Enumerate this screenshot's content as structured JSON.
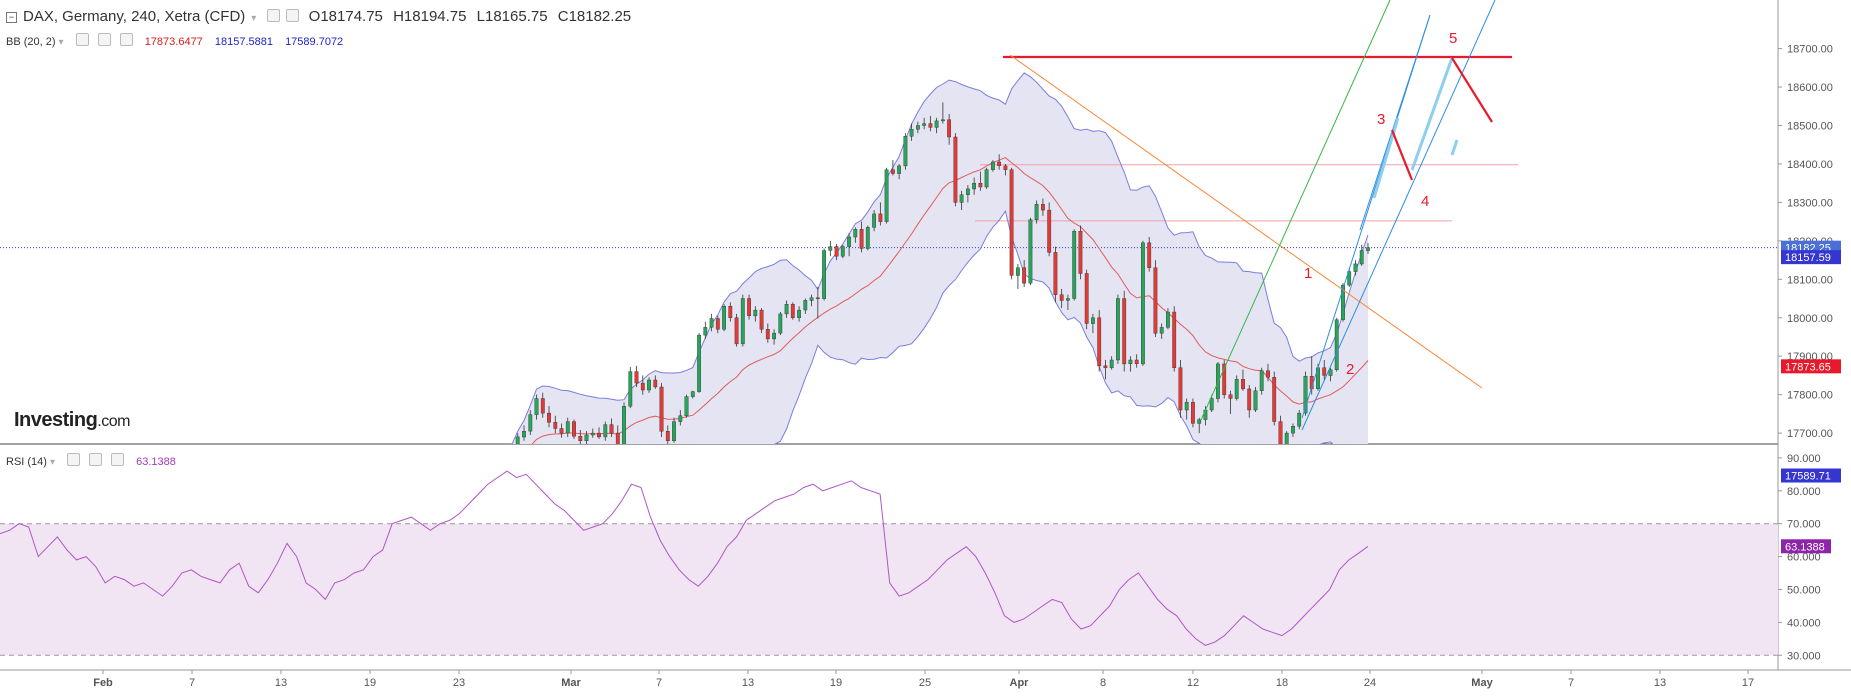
{
  "header": {
    "instrument": "DAX, Germany, 240, Xetra (CFD)",
    "open": "O18174.75",
    "high": "H18194.75",
    "low": "L18165.75",
    "close": "C18182.25"
  },
  "bb_indicator": {
    "label": "BB (20, 2)",
    "upper": "17873.6477",
    "middle": "18157.5881",
    "lower": "17589.7072"
  },
  "rsi_indicator": {
    "label": "RSI (14)",
    "value": "63.1388"
  },
  "logo": {
    "name": "Investing",
    "tld": ".com"
  },
  "colors": {
    "up": "#26a65b",
    "down": "#e53935",
    "bb_band": "#7a7ee0",
    "bb_mid": "#e05c5c",
    "bb_fill": "#e4e4f2",
    "rsi_line": "#b056c8",
    "rsi_fill": "#f1e5f4",
    "annotation_red": "#e8192c",
    "trend_orange": "#f7893b",
    "channel_blue": "#2d8fe0",
    "channel_green": "#38b449",
    "price_line": "#3b3bd6"
  },
  "chart_data": [
    {
      "type": "candlestick",
      "title": "DAX, Germany, 240, Xetra (CFD)",
      "y_ticks": [
        17700,
        17800,
        17900,
        18000,
        18100,
        18200,
        18300,
        18400,
        18500,
        18600,
        18700
      ],
      "y_tick_labels": [
        "17700.00",
        "17800.00",
        "17900.00",
        "18000.00",
        "18100.00",
        "18200.00",
        "18300.00",
        "18400.00",
        "18500.00",
        "18600.00",
        "18700.00"
      ],
      "ylim": [
        17570,
        18720
      ],
      "x_ticks": [
        "Feb",
        "7",
        "13",
        "19",
        "23",
        "Mar",
        "7",
        "13",
        "19",
        "25",
        "Apr",
        "8",
        "12",
        "18",
        "24",
        "May",
        "7",
        "13",
        "17"
      ],
      "price_labels": [
        {
          "value": 18182.25,
          "text": "18182.25",
          "color": "#4a6fd6"
        },
        {
          "value": 18157.59,
          "text": "18157.59",
          "color": "#3535d0"
        },
        {
          "value": 17873.65,
          "text": "17873.65",
          "color": "#e8192c"
        },
        {
          "value": 17589.71,
          "text": "17589.71",
          "color": "#3535d0"
        }
      ],
      "annotations": [
        "1",
        "2",
        "3",
        "4",
        "5"
      ],
      "current_price": 18182.25,
      "series": [
        {
          "name": "BB (20, 2)",
          "bands": [
            "upper",
            "middle",
            "lower"
          ]
        }
      ],
      "candles": [
        [
          17590,
          17605,
          17575,
          17598
        ],
        [
          17598,
          17625,
          17590,
          17615
        ],
        [
          17615,
          17655,
          17605,
          17640
        ],
        [
          17640,
          17700,
          17630,
          17690
        ],
        [
          17690,
          17720,
          17680,
          17705
        ],
        [
          17705,
          17760,
          17695,
          17748
        ],
        [
          17748,
          17800,
          17735,
          17790
        ],
        [
          17790,
          17805,
          17740,
          17752
        ],
        [
          17752,
          17770,
          17715,
          17728
        ],
        [
          17728,
          17745,
          17700,
          17712
        ],
        [
          17712,
          17725,
          17688,
          17700
        ],
        [
          17700,
          17740,
          17690,
          17730
        ],
        [
          17730,
          17735,
          17685,
          17692
        ],
        [
          17692,
          17708,
          17670,
          17680
        ],
        [
          17680,
          17705,
          17668,
          17695
        ],
        [
          17695,
          17712,
          17688,
          17700
        ],
        [
          17700,
          17715,
          17685,
          17690
        ],
        [
          17690,
          17730,
          17680,
          17722
        ],
        [
          17722,
          17738,
          17690,
          17700
        ],
        [
          17700,
          17720,
          17650,
          17660
        ],
        [
          17660,
          17780,
          17655,
          17770
        ],
        [
          17770,
          17872,
          17765,
          17860
        ],
        [
          17860,
          17875,
          17820,
          17830
        ],
        [
          17830,
          17850,
          17800,
          17812
        ],
        [
          17812,
          17845,
          17805,
          17838
        ],
        [
          17838,
          17850,
          17815,
          17820
        ],
        [
          17820,
          17830,
          17690,
          17705
        ],
        [
          17705,
          17720,
          17665,
          17680
        ],
        [
          17680,
          17740,
          17675,
          17730
        ],
        [
          17730,
          17760,
          17720,
          17745
        ],
        [
          17745,
          17800,
          17740,
          17795
        ],
        [
          17795,
          17810,
          17790,
          17808
        ],
        [
          17808,
          17960,
          17805,
          17955
        ],
        [
          17955,
          17990,
          17945,
          17975
        ],
        [
          17975,
          18010,
          17965,
          17998
        ],
        [
          17998,
          18005,
          17960,
          17970
        ],
        [
          17970,
          18035,
          17965,
          18030
        ],
        [
          18030,
          18040,
          17990,
          18000
        ],
        [
          18000,
          18010,
          17925,
          17932
        ],
        [
          17932,
          18060,
          17925,
          18050
        ],
        [
          18050,
          18060,
          17995,
          18005
        ],
        [
          18005,
          18030,
          17990,
          18020
        ],
        [
          18020,
          18025,
          17960,
          17970
        ],
        [
          17970,
          17985,
          17935,
          17945
        ],
        [
          17945,
          17970,
          17930,
          17960
        ],
        [
          17960,
          18015,
          17955,
          18010
        ],
        [
          18010,
          18045,
          18000,
          18035
        ],
        [
          18035,
          18040,
          17995,
          18000
        ],
        [
          18000,
          18030,
          17990,
          18020
        ],
        [
          18020,
          18050,
          18010,
          18045
        ],
        [
          18045,
          18060,
          18030,
          18052
        ],
        [
          18052,
          18080,
          17998,
          18050
        ],
        [
          18050,
          18180,
          18045,
          18175
        ],
        [
          18175,
          18200,
          18160,
          18185
        ],
        [
          18185,
          18192,
          18150,
          18160
        ],
        [
          18160,
          18190,
          18155,
          18185
        ],
        [
          18185,
          18220,
          18160,
          18210
        ],
        [
          18210,
          18235,
          18195,
          18230
        ],
        [
          18230,
          18250,
          18170,
          18180
        ],
        [
          18180,
          18240,
          18175,
          18235
        ],
        [
          18235,
          18280,
          18225,
          18270
        ],
        [
          18270,
          18300,
          18240,
          18250
        ],
        [
          18250,
          18390,
          18245,
          18385
        ],
        [
          18385,
          18410,
          18370,
          18375
        ],
        [
          18375,
          18400,
          18360,
          18395
        ],
        [
          18395,
          18480,
          18385,
          18472
        ],
        [
          18472,
          18505,
          18460,
          18490
        ],
        [
          18490,
          18510,
          18480,
          18500
        ],
        [
          18500,
          18520,
          18490,
          18505
        ],
        [
          18505,
          18525,
          18485,
          18495
        ],
        [
          18495,
          18520,
          18480,
          18512
        ],
        [
          18512,
          18560,
          18505,
          18515
        ],
        [
          18515,
          18530,
          18450,
          18470
        ],
        [
          18470,
          18480,
          18290,
          18300
        ],
        [
          18300,
          18330,
          18280,
          18320
        ],
        [
          18320,
          18345,
          18300,
          18335
        ],
        [
          18335,
          18365,
          18320,
          18350
        ],
        [
          18350,
          18380,
          18330,
          18340
        ],
        [
          18340,
          18390,
          18335,
          18385
        ],
        [
          18385,
          18410,
          18380,
          18405
        ],
        [
          18405,
          18425,
          18385,
          18395
        ],
        [
          18395,
          18400,
          18370,
          18385
        ],
        [
          18385,
          18390,
          18100,
          18110
        ],
        [
          18110,
          18140,
          18075,
          18130
        ],
        [
          18130,
          18150,
          18080,
          18090
        ],
        [
          18090,
          18260,
          18085,
          18255
        ],
        [
          18255,
          18305,
          18245,
          18295
        ],
        [
          18295,
          18310,
          18265,
          18280
        ],
        [
          18280,
          18300,
          18160,
          18170
        ],
        [
          18170,
          18185,
          18040,
          18060
        ],
        [
          18060,
          18075,
          18025,
          18045
        ],
        [
          18045,
          18060,
          18020,
          18050
        ],
        [
          18050,
          18230,
          18045,
          18225
        ],
        [
          18225,
          18240,
          18100,
          18115
        ],
        [
          18115,
          18125,
          17970,
          17985
        ],
        [
          17985,
          18010,
          17960,
          18000
        ],
        [
          18000,
          18020,
          17860,
          17875
        ],
        [
          17875,
          17890,
          17840,
          17870
        ],
        [
          17870,
          17900,
          17865,
          17890
        ],
        [
          17890,
          18060,
          17880,
          18050
        ],
        [
          18050,
          18070,
          17860,
          17880
        ],
        [
          17880,
          17900,
          17860,
          17890
        ],
        [
          17890,
          17905,
          17870,
          17880
        ],
        [
          17880,
          18200,
          17875,
          18195
        ],
        [
          18195,
          18210,
          18120,
          18130
        ],
        [
          18130,
          18150,
          17950,
          17960
        ],
        [
          17960,
          17985,
          17945,
          17975
        ],
        [
          17975,
          18025,
          17970,
          18015
        ],
        [
          18015,
          18030,
          17860,
          17870
        ],
        [
          17870,
          17890,
          17740,
          17760
        ],
        [
          17760,
          17790,
          17735,
          17780
        ],
        [
          17780,
          17790,
          17715,
          17725
        ],
        [
          17725,
          17740,
          17700,
          17735
        ],
        [
          17735,
          17770,
          17720,
          17760
        ],
        [
          17760,
          17800,
          17755,
          17790
        ],
        [
          17790,
          17885,
          17780,
          17880
        ],
        [
          17880,
          17890,
          17790,
          17800
        ],
        [
          17800,
          17810,
          17750,
          17790
        ],
        [
          17790,
          17850,
          17785,
          17840
        ],
        [
          17840,
          17865,
          17810,
          17815
        ],
        [
          17815,
          17825,
          17740,
          17760
        ],
        [
          17760,
          17820,
          17755,
          17810
        ],
        [
          17810,
          17870,
          17800,
          17862
        ],
        [
          17862,
          17880,
          17835,
          17845
        ],
        [
          17845,
          17860,
          17720,
          17730
        ],
        [
          17730,
          17745,
          17640,
          17655
        ],
        [
          17655,
          17705,
          17650,
          17700
        ],
        [
          17700,
          17725,
          17690,
          17718
        ],
        [
          17718,
          17760,
          17710,
          17752
        ],
        [
          17752,
          17860,
          17745,
          17848
        ],
        [
          17848,
          17900,
          17800,
          17815
        ],
        [
          17815,
          17880,
          17810,
          17870
        ],
        [
          17870,
          17890,
          17835,
          17850
        ],
        [
          17850,
          17870,
          17835,
          17865
        ],
        [
          17865,
          18000,
          17860,
          17995
        ],
        [
          17995,
          18090,
          17990,
          18085
        ],
        [
          18085,
          18130,
          18080,
          18120
        ],
        [
          18120,
          18150,
          18110,
          18140
        ],
        [
          18140,
          18190,
          18135,
          18175
        ],
        [
          18174.75,
          18194.75,
          18165.75,
          18182.25
        ]
      ]
    },
    {
      "type": "line",
      "title": "RSI (14)",
      "y_ticks": [
        30,
        40,
        50,
        60,
        70,
        80,
        90
      ],
      "y_tick_labels": [
        "30.000",
        "40.000",
        "50.000",
        "60.000",
        "70.000",
        "80.000",
        "90.000"
      ],
      "ylim": [
        27,
        92
      ],
      "levels": [
        70,
        30
      ],
      "current_value": 63.1388,
      "value_label": "63.1388",
      "values": [
        67,
        68,
        70,
        69,
        60,
        63,
        66,
        62,
        59,
        60,
        57,
        52,
        54,
        53,
        51,
        52,
        50,
        48,
        51,
        55,
        56,
        54,
        53,
        52,
        56,
        58,
        51,
        49,
        53,
        58,
        64,
        60,
        52,
        50,
        47,
        52,
        53,
        55,
        56,
        60,
        62,
        70,
        71,
        72,
        70,
        68,
        70,
        71,
        73,
        76,
        79,
        82,
        84,
        86,
        84,
        85,
        82,
        79,
        76,
        74,
        71,
        68,
        69,
        70,
        73,
        77,
        82,
        81,
        72,
        65,
        60,
        56,
        53,
        51,
        54,
        58,
        63,
        66,
        71,
        73,
        75,
        77,
        78,
        79,
        81,
        82,
        80,
        81,
        82,
        83,
        81,
        80,
        79,
        52,
        48,
        49,
        51,
        53,
        56,
        59,
        61,
        63,
        60,
        55,
        49,
        42,
        40,
        41,
        43,
        45,
        47,
        46,
        41,
        38,
        39,
        42,
        45,
        50,
        53,
        55,
        51,
        47,
        44,
        42,
        38,
        35,
        33,
        34,
        36,
        39,
        42,
        40,
        38,
        37,
        36,
        38,
        41,
        44,
        47,
        50,
        56,
        59,
        61,
        63.1388
      ]
    }
  ]
}
